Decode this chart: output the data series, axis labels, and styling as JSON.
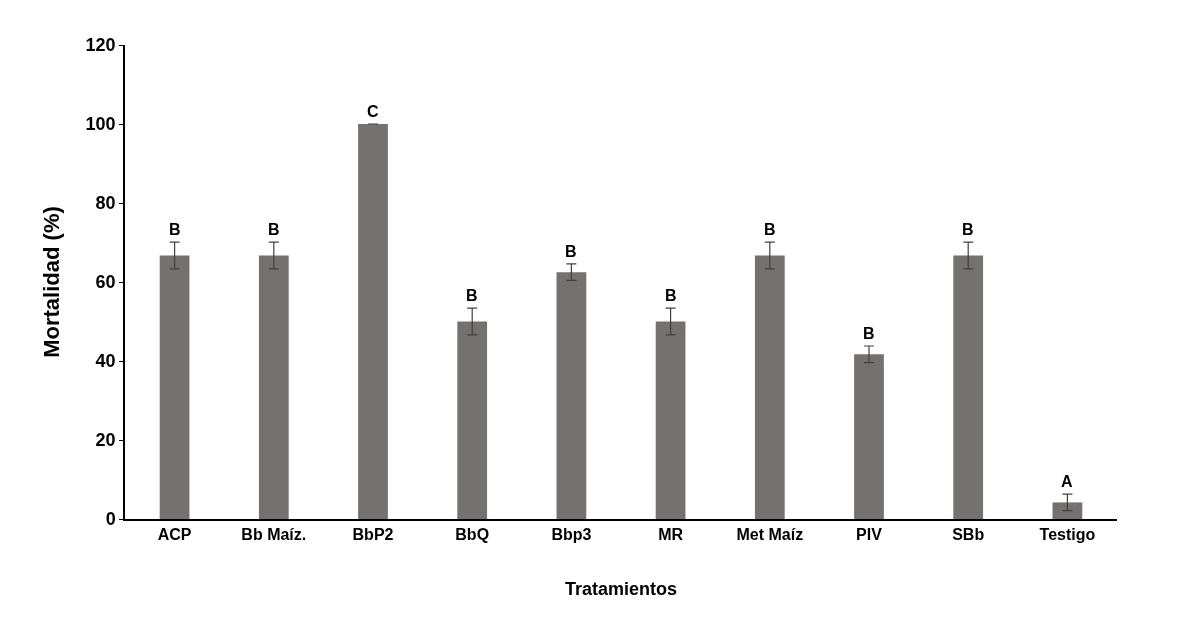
{
  "chart_data": {
    "type": "bar",
    "xlabel": "Tratamientos",
    "ylabel": "Mortalidad (%)",
    "categories": [
      "ACP",
      "Bb Maíz.",
      "BbP2",
      "BbQ",
      "Bbp3",
      "MR",
      "Met Maíz",
      "PIV",
      "SBb",
      "Testigo"
    ],
    "values": [
      66.7,
      66.7,
      100,
      50,
      62.5,
      50,
      66.7,
      41.7,
      66.7,
      4.2
    ],
    "errors": [
      3.4,
      3.4,
      0,
      3.4,
      2.1,
      3.4,
      3.4,
      2.1,
      3.4,
      2.1
    ],
    "color": "#767171",
    "ylim": [
      0,
      120
    ],
    "yticks": [
      0,
      20,
      40,
      60,
      80,
      100,
      120
    ],
    "legend": false,
    "annotations": [
      {
        "text": "B",
        "x": "ACP",
        "y": 70.1
      },
      {
        "text": "B",
        "x": "Bb Maíz.",
        "y": 70.1
      },
      {
        "text": "C",
        "x": "BbP2",
        "y": 100
      },
      {
        "text": "B",
        "x": "BbQ",
        "y": 53.4
      },
      {
        "text": "B",
        "x": "Bbp3",
        "y": 64.6
      },
      {
        "text": "B",
        "x": "MR",
        "y": 53.4
      },
      {
        "text": "B",
        "x": "Met Maíz",
        "y": 70.1
      },
      {
        "text": "B",
        "x": "PIV",
        "y": 43.8
      },
      {
        "text": "B",
        "x": "SBb",
        "y": 70.1
      },
      {
        "text": "A",
        "x": "Testigo",
        "y": 6.3
      }
    ]
  }
}
